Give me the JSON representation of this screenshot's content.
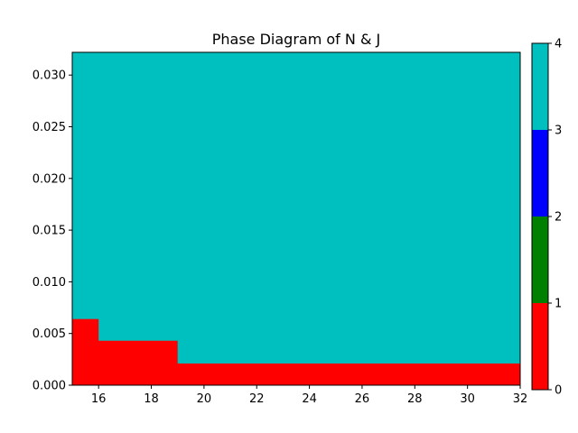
{
  "chart_data": {
    "type": "heatmap",
    "title": "Phase Diagram of N & J",
    "xlabel": "",
    "ylabel": "",
    "xlim": [
      15,
      32
    ],
    "ylim": [
      0,
      0.0322
    ],
    "x_ticks": [
      "16",
      "18",
      "20",
      "22",
      "24",
      "26",
      "28",
      "30",
      "32"
    ],
    "y_ticks": [
      "0.000",
      "0.005",
      "0.010",
      "0.015",
      "0.020",
      "0.025",
      "0.030"
    ],
    "grid": false,
    "regions": [
      {
        "phase": 3,
        "x": [
          15,
          32
        ],
        "y": [
          0,
          0.0322
        ]
      },
      {
        "phase": 0,
        "x": [
          15,
          32
        ],
        "y": [
          0,
          0.0021
        ]
      },
      {
        "phase": 0,
        "x": [
          15,
          19
        ],
        "y": [
          0,
          0.0043
        ]
      },
      {
        "phase": 0,
        "x": [
          15,
          16
        ],
        "y": [
          0,
          0.0064
        ]
      }
    ],
    "colorbar": {
      "bounds": [
        0,
        1,
        2,
        3,
        4
      ],
      "tick_labels": [
        "0",
        "1",
        "2",
        "3",
        "4"
      ],
      "colors": [
        "#ff0000",
        "#008000",
        "#0000ff",
        "#00bfbf"
      ]
    }
  }
}
